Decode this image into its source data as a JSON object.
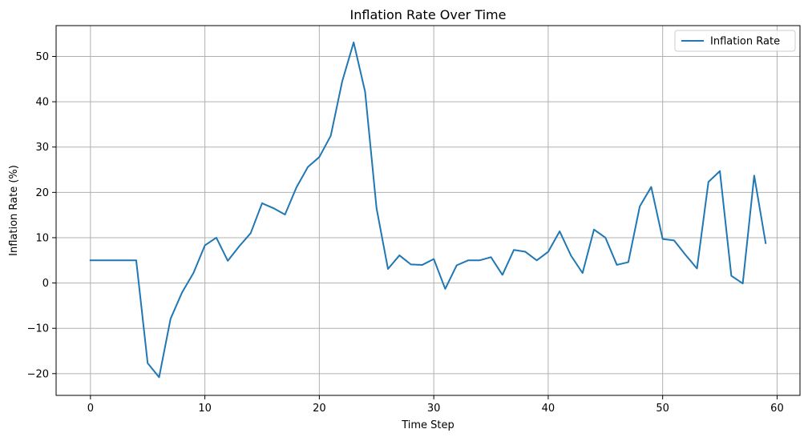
{
  "chart_data": {
    "type": "line",
    "title": "Inflation Rate Over Time",
    "xlabel": "Time Step",
    "ylabel": "Inflation Rate (%)",
    "xlim": [
      -3,
      62
    ],
    "ylim": [
      -24.8,
      56.8
    ],
    "xticks": [
      0,
      10,
      20,
      30,
      40,
      50,
      60
    ],
    "yticks": [
      -20,
      -10,
      0,
      10,
      20,
      30,
      40,
      50
    ],
    "grid": true,
    "legend": {
      "position": "top-right"
    },
    "series": [
      {
        "name": "Inflation Rate",
        "color": "#1f77b4",
        "x": [
          0,
          1,
          2,
          3,
          4,
          5,
          6,
          7,
          8,
          9,
          10,
          11,
          12,
          13,
          14,
          15,
          16,
          17,
          18,
          19,
          20,
          21,
          22,
          23,
          24,
          25,
          26,
          27,
          28,
          29,
          30,
          31,
          32,
          33,
          34,
          35,
          36,
          37,
          38,
          39,
          40,
          41,
          42,
          43,
          44,
          45,
          46,
          47,
          48,
          49,
          50,
          51,
          52,
          53,
          54,
          55,
          56,
          57,
          58,
          59
        ],
        "y": [
          5.0,
          5.0,
          5.0,
          5.0,
          5.0,
          -17.7,
          -20.8,
          -7.9,
          -2.1,
          2.2,
          8.3,
          10.0,
          4.9,
          8.1,
          11.0,
          17.6,
          16.5,
          15.1,
          21.1,
          25.6,
          27.8,
          32.5,
          44.5,
          53.1,
          42.2,
          16.5,
          3.1,
          6.1,
          4.1,
          4.0,
          5.3,
          -1.3,
          3.9,
          5.0,
          5.0,
          5.7,
          1.8,
          7.3,
          6.9,
          5.0,
          6.9,
          11.4,
          6.0,
          2.2,
          11.8,
          10.0,
          4.0,
          4.6,
          16.9,
          21.2,
          9.7,
          9.4,
          6.2,
          3.2,
          22.3,
          24.7,
          1.6,
          -0.1,
          23.7,
          8.8
        ]
      }
    ]
  }
}
